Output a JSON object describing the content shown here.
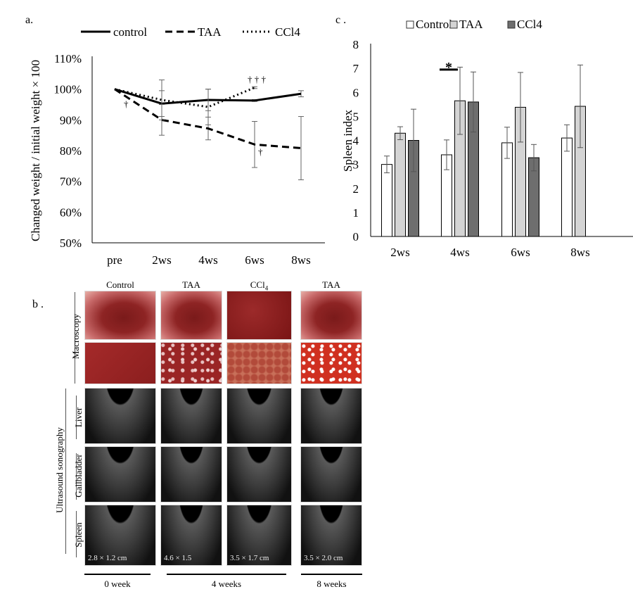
{
  "chart_data": [
    {
      "panel_label": "a.",
      "type": "line",
      "ylabel": "Changed weight / initial weight × 100",
      "categories": [
        "pre",
        "2ws",
        "4ws",
        "6ws",
        "8ws"
      ],
      "yticks": [
        "50%",
        "60%",
        "70%",
        "80%",
        "90%",
        "100%",
        "110%"
      ],
      "ylim": [
        50,
        110
      ],
      "legend_position": "top",
      "series": [
        {
          "name": "control",
          "style": "solid",
          "values": [
            100,
            95.3,
            96.5,
            96.3,
            98.5
          ],
          "errors": [
            0,
            4.2,
            3.5,
            0.3,
            1.0
          ]
        },
        {
          "name": "TAA",
          "style": "dashed",
          "values": [
            100,
            90,
            87.2,
            82,
            80.8
          ],
          "errors": [
            0,
            5.0,
            3.7,
            7.5,
            10.3
          ]
        },
        {
          "name": "CCl4",
          "style": "dotted",
          "values": [
            100,
            96.5,
            94.2,
            100.5,
            null
          ],
          "errors": [
            0,
            6.5,
            5.8,
            0.3,
            null
          ]
        }
      ],
      "annotations": [
        {
          "text": "†",
          "category": "pre",
          "series": "TAA"
        },
        {
          "text": "† † †",
          "category": "6ws",
          "series": "CCl4"
        },
        {
          "text": "†",
          "category": "6ws",
          "series": "TAA"
        }
      ],
      "grid": false
    },
    {
      "panel_label": "c .",
      "type": "bar",
      "ylabel": "Spleen index",
      "categories": [
        "2ws",
        "4ws",
        "6ws",
        "8ws"
      ],
      "yticks": [
        "0",
        "1",
        "2",
        "3",
        "4",
        "5",
        "6",
        "7",
        "8"
      ],
      "ylim": [
        0,
        8
      ],
      "legend_position": "top",
      "series": [
        {
          "name": "Control",
          "color": "#ffffff",
          "values": [
            3.0,
            3.4,
            3.9,
            4.1
          ],
          "errors": [
            0.35,
            0.62,
            0.65,
            0.55
          ]
        },
        {
          "name": "TAA",
          "color": "#d4d4d4",
          "values": [
            4.3,
            5.65,
            5.38,
            5.42
          ],
          "errors": [
            0.27,
            1.4,
            1.45,
            1.72
          ]
        },
        {
          "name": "CCl4",
          "color": "#6e6e6e",
          "values": [
            4.0,
            5.6,
            3.28,
            null
          ],
          "errors": [
            1.3,
            1.25,
            0.55,
            null
          ]
        }
      ],
      "annotations": [
        {
          "text": "*",
          "category": "4ws"
        }
      ],
      "grid": false
    }
  ],
  "panel_b": {
    "panel_label": "b .",
    "columns": [
      "Control",
      "TAA",
      "CCl",
      "TAA"
    ],
    "ccl_subscript": "4",
    "rows": {
      "macroscopy": "Macroscopy",
      "ultrasound": "Ultrasound sonography",
      "liver": "Liver",
      "gallbladder": "Gallbladder",
      "spleen": "Spleen"
    },
    "spleen_measurements": [
      "2.8 × 1.2 cm",
      "4.6 × 1.5",
      "3.5 × 1.7 cm",
      "3.5 × 2.0 cm"
    ],
    "timepoints": [
      "0 week",
      "4 weeks",
      "8 weeks"
    ]
  }
}
